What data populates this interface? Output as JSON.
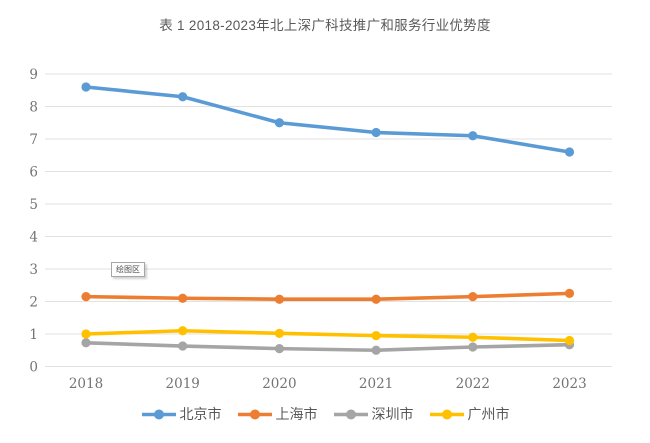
{
  "tooltip": {
    "label": "绘图区"
  },
  "chart_data": {
    "type": "line",
    "title": "表 1 2018-2023年北上深广科技推广和服务行业优势度",
    "categories": [
      "2018",
      "2019",
      "2020",
      "2021",
      "2022",
      "2023"
    ],
    "series": [
      {
        "key": "beijing",
        "name": "北京市",
        "color": "#5B9BD5",
        "values": [
          8.6,
          8.3,
          7.5,
          7.2,
          7.1,
          6.6
        ]
      },
      {
        "key": "shanghai",
        "name": "上海市",
        "color": "#ED7D31",
        "values": [
          2.15,
          2.1,
          2.07,
          2.07,
          2.15,
          2.25
        ]
      },
      {
        "key": "shenzhen",
        "name": "深圳市",
        "color": "#A5A5A5",
        "values": [
          0.73,
          0.63,
          0.55,
          0.5,
          0.6,
          0.67
        ]
      },
      {
        "key": "guangzhou",
        "name": "广州市",
        "color": "#FFC000",
        "values": [
          1.0,
          1.1,
          1.02,
          0.95,
          0.9,
          0.8
        ]
      }
    ],
    "xlabel": "",
    "ylabel": "",
    "ylim": [
      0,
      9
    ],
    "yticks": [
      0,
      1,
      2,
      3,
      4,
      5,
      6,
      7,
      8,
      9
    ],
    "grid": true,
    "legend_position": "bottom",
    "colors": {
      "gridline": "#e2e2e2",
      "axis_text": "#737373",
      "title_text": "#595959"
    }
  }
}
